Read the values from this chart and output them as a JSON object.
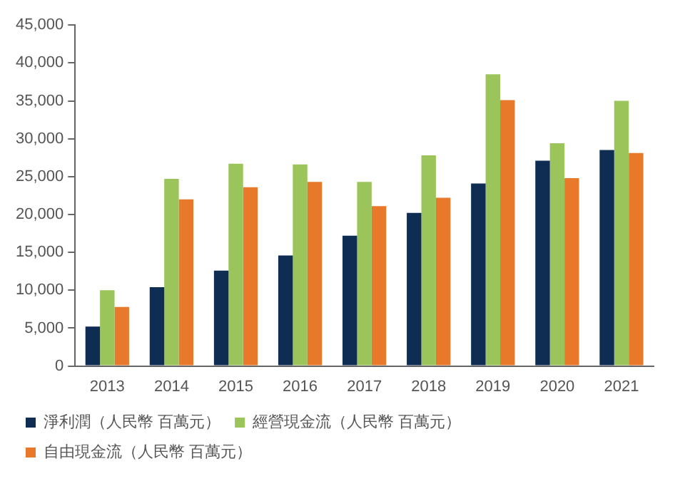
{
  "chart_data": {
    "type": "bar",
    "categories": [
      "2013",
      "2014",
      "2015",
      "2016",
      "2017",
      "2018",
      "2019",
      "2020",
      "2021"
    ],
    "series": [
      {
        "name": "淨利潤（人民幣 百萬元）",
        "color": "#0f2d52",
        "values": [
          5200,
          10400,
          12600,
          14600,
          17200,
          20200,
          24100,
          27100,
          28500
        ]
      },
      {
        "name": "經營現金流（人民幣 百萬元）",
        "color": "#9bc45a",
        "values": [
          10000,
          24700,
          26700,
          26600,
          24300,
          27800,
          38500,
          29400,
          35000
        ]
      },
      {
        "name": "自由現金流（人民幣 百萬元）",
        "color": "#e8782a",
        "values": [
          7800,
          22000,
          23600,
          24300,
          21100,
          22200,
          35100,
          24800,
          28100
        ]
      }
    ],
    "ylim": [
      0,
      45000
    ],
    "yticks": [
      {
        "value": 0,
        "label": "0"
      },
      {
        "value": 5000,
        "label": "5,000"
      },
      {
        "value": 10000,
        "label": "10,000"
      },
      {
        "value": 15000,
        "label": "15,000"
      },
      {
        "value": 20000,
        "label": "20,000"
      },
      {
        "value": 25000,
        "label": "25,000"
      },
      {
        "value": 30000,
        "label": "30,000"
      },
      {
        "value": 35000,
        "label": "35,000"
      },
      {
        "value": 40000,
        "label": "40,000"
      },
      {
        "value": 45000,
        "label": "45,000"
      }
    ],
    "grid": false,
    "legend": "bottom"
  }
}
